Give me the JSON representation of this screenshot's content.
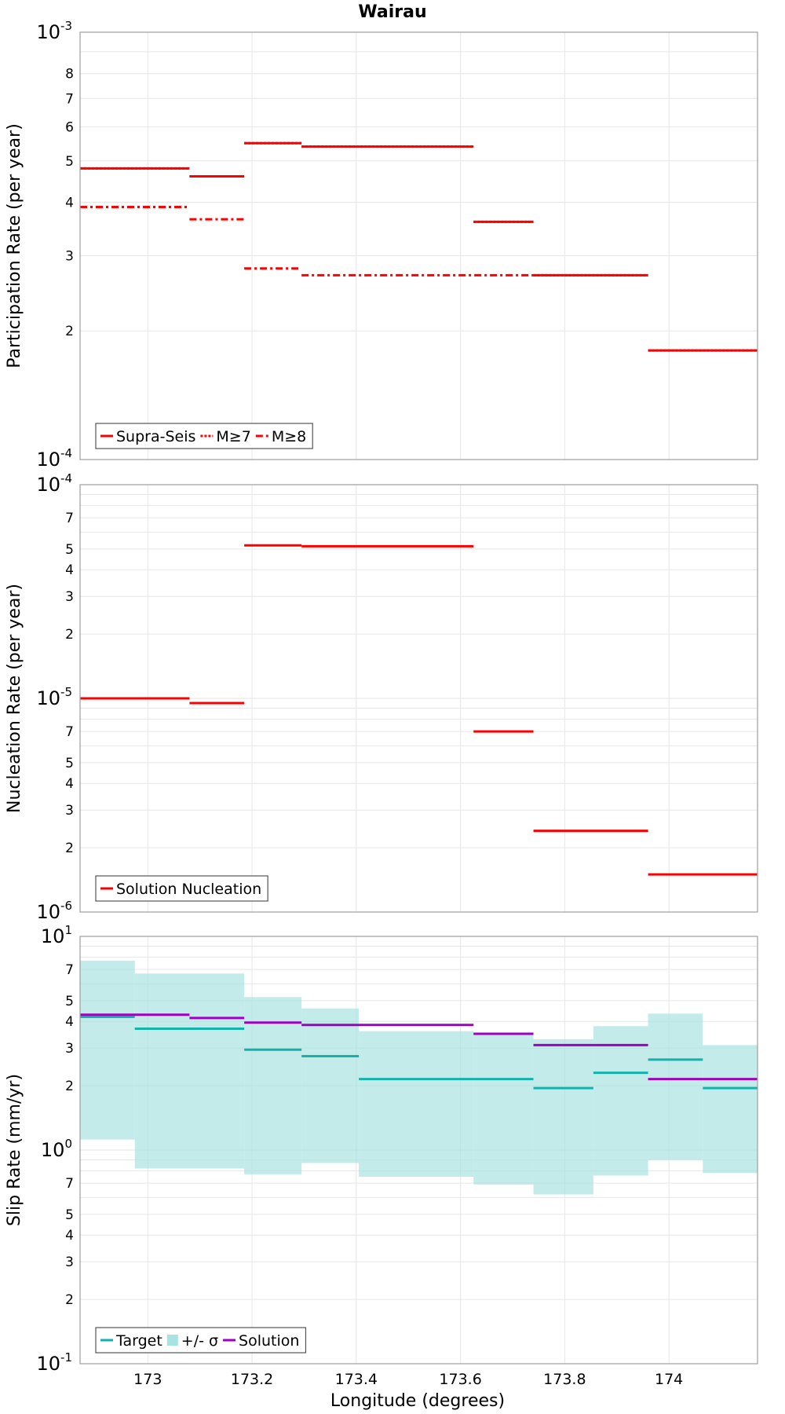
{
  "title": "Wairau",
  "xlabel": "Longitude (degrees)",
  "x_ticks": [
    173,
    173.2,
    173.4,
    173.6,
    173.8,
    174
  ],
  "x_tick_labels": [
    "173",
    "173.2",
    "173.4",
    "173.6",
    "173.8",
    "174"
  ],
  "xlim": [
    172.87,
    174.17
  ],
  "colors": {
    "red": "#ff0000",
    "teal": "#14b2ad",
    "band": "#a8e3e1",
    "purple": "#a000c0",
    "grid": "#e6e6e6",
    "frame": "#9e9e9e"
  },
  "chart_data": [
    {
      "type": "line",
      "ylabel": "Participation Rate (per year)",
      "yscale": "log",
      "ylim": [
        0.0001,
        0.001
      ],
      "y_tick_labels": [
        {
          "value": 0.001,
          "base": "10",
          "exp": "-3",
          "major": true
        },
        {
          "value": 0.0008,
          "label": "8"
        },
        {
          "value": 0.0007,
          "label": "7"
        },
        {
          "value": 0.0006,
          "label": "6"
        },
        {
          "value": 0.0005,
          "label": "5"
        },
        {
          "value": 0.0004,
          "label": "4"
        },
        {
          "value": 0.0003,
          "label": "3"
        },
        {
          "value": 0.0002,
          "label": "2"
        },
        {
          "value": 0.0001,
          "base": "10",
          "exp": "-4",
          "major": true
        }
      ],
      "legend": {
        "position": "bottom-left",
        "entries": [
          {
            "label": "Supra-Seis",
            "style": "solid",
            "color": "#ff0000"
          },
          {
            "label": "M≥7",
            "style": "dotted",
            "color": "#ff0000"
          },
          {
            "label": "M≥8",
            "style": "dashdot",
            "color": "#ff0000"
          }
        ]
      },
      "series": [
        {
          "name": "Supra-Seis",
          "style": "solid",
          "color": "#ff0000",
          "segments": [
            [
              172.87,
              173.08,
              0.00048
            ],
            [
              173.08,
              173.185,
              0.00046
            ],
            [
              173.185,
              173.295,
              0.00055
            ],
            [
              173.295,
              173.625,
              0.00054
            ],
            [
              173.625,
              173.74,
              0.00036
            ],
            [
              173.74,
              173.96,
              0.00027
            ],
            [
              173.96,
              174.17,
              0.00018
            ]
          ]
        },
        {
          "name": "M≥7",
          "style": "dotted",
          "color": "#ff0000",
          "segments": [
            [
              172.87,
              173.08,
              0.00048
            ],
            [
              173.08,
              173.185,
              0.00046
            ],
            [
              173.185,
              173.295,
              0.00055
            ],
            [
              173.295,
              173.625,
              0.00054
            ],
            [
              173.625,
              173.74,
              0.00036
            ],
            [
              173.74,
              173.96,
              0.00027
            ],
            [
              173.96,
              174.17,
              0.00018
            ]
          ]
        },
        {
          "name": "M≥8",
          "style": "dashdot",
          "color": "#ff0000",
          "segments": [
            [
              172.87,
              173.08,
              0.00039
            ],
            [
              173.08,
              173.185,
              0.000365
            ],
            [
              173.185,
              173.295,
              0.00028
            ],
            [
              173.295,
              173.74,
              0.00027
            ]
          ]
        }
      ]
    },
    {
      "type": "line",
      "ylabel": "Nucleation Rate (per year)",
      "yscale": "log",
      "ylim": [
        1e-06,
        0.0001
      ],
      "y_tick_labels": [
        {
          "value": 0.0001,
          "base": "10",
          "exp": "-4",
          "major": true
        },
        {
          "value": 7e-05,
          "label": "7"
        },
        {
          "value": 5e-05,
          "label": "5"
        },
        {
          "value": 4e-05,
          "label": "4"
        },
        {
          "value": 3e-05,
          "label": "3"
        },
        {
          "value": 2e-05,
          "label": "2"
        },
        {
          "value": 1e-05,
          "base": "10",
          "exp": "-5",
          "major": true
        },
        {
          "value": 7e-06,
          "label": "7"
        },
        {
          "value": 5e-06,
          "label": "5"
        },
        {
          "value": 4e-06,
          "label": "4"
        },
        {
          "value": 3e-06,
          "label": "3"
        },
        {
          "value": 2e-06,
          "label": "2"
        },
        {
          "value": 1e-06,
          "base": "10",
          "exp": "-6",
          "major": true
        }
      ],
      "legend": {
        "position": "bottom-left",
        "entries": [
          {
            "label": "Solution Nucleation",
            "style": "solid",
            "color": "#ff0000"
          }
        ]
      },
      "series": [
        {
          "name": "Solution Nucleation",
          "style": "solid",
          "color": "#ff0000",
          "segments": [
            [
              172.87,
              173.08,
              1e-05
            ],
            [
              173.08,
              173.185,
              9.5e-06
            ],
            [
              173.185,
              173.295,
              5.2e-05
            ],
            [
              173.295,
              173.625,
              5.15e-05
            ],
            [
              173.625,
              173.74,
              7e-06
            ],
            [
              173.74,
              173.96,
              2.4e-06
            ],
            [
              173.96,
              174.17,
              1.5e-06
            ]
          ]
        }
      ]
    },
    {
      "type": "area",
      "ylabel": "Slip Rate (mm/yr)",
      "yscale": "log",
      "ylim": [
        0.1,
        10
      ],
      "y_tick_labels": [
        {
          "value": 10,
          "base": "10",
          "exp": "1",
          "major": true
        },
        {
          "value": 7,
          "label": "7"
        },
        {
          "value": 5,
          "label": "5"
        },
        {
          "value": 4,
          "label": "4"
        },
        {
          "value": 3,
          "label": "3"
        },
        {
          "value": 2,
          "label": "2"
        },
        {
          "value": 1,
          "base": "10",
          "exp": "0",
          "major": true
        },
        {
          "value": 0.7,
          "label": "7"
        },
        {
          "value": 0.5,
          "label": "5"
        },
        {
          "value": 0.4,
          "label": "4"
        },
        {
          "value": 0.3,
          "label": "3"
        },
        {
          "value": 0.2,
          "label": "2"
        },
        {
          "value": 0.1,
          "base": "10",
          "exp": "-1",
          "major": true
        }
      ],
      "legend": {
        "position": "bottom-left",
        "entries": [
          {
            "label": "Target",
            "style": "solid",
            "color": "#14b2ad"
          },
          {
            "label": "+/- σ",
            "style": "box",
            "color": "#a8e3e1"
          },
          {
            "label": "Solution",
            "style": "solid",
            "color": "#a000c0"
          }
        ]
      },
      "band": [
        [
          172.87,
          172.975,
          1.12,
          7.7
        ],
        [
          172.975,
          173.185,
          0.82,
          6.7
        ],
        [
          173.185,
          173.295,
          0.77,
          5.2
        ],
        [
          173.295,
          173.405,
          0.87,
          4.6
        ],
        [
          173.405,
          173.625,
          0.75,
          3.6
        ],
        [
          173.625,
          173.74,
          0.69,
          3.55
        ],
        [
          173.74,
          173.855,
          0.62,
          3.3
        ],
        [
          173.855,
          173.96,
          0.76,
          3.8
        ],
        [
          173.96,
          174.065,
          0.9,
          4.35
        ],
        [
          174.065,
          174.17,
          0.78,
          3.1
        ]
      ],
      "series": [
        {
          "name": "Target",
          "style": "solid",
          "color": "#14b2ad",
          "segments": [
            [
              172.87,
              172.975,
              4.2
            ],
            [
              172.975,
              173.185,
              3.7
            ],
            [
              173.185,
              173.295,
              2.95
            ],
            [
              173.295,
              173.405,
              2.75
            ],
            [
              173.405,
              173.74,
              2.15
            ],
            [
              173.74,
              173.855,
              1.95
            ],
            [
              173.855,
              173.96,
              2.3
            ],
            [
              173.96,
              174.065,
              2.65
            ],
            [
              174.065,
              174.17,
              1.95
            ]
          ]
        },
        {
          "name": "Solution",
          "style": "solid",
          "color": "#a000c0",
          "segments": [
            [
              172.87,
              173.08,
              4.3
            ],
            [
              173.08,
              173.185,
              4.15
            ],
            [
              173.185,
              173.295,
              3.95
            ],
            [
              173.295,
              173.625,
              3.85
            ],
            [
              173.625,
              173.74,
              3.5
            ],
            [
              173.74,
              173.96,
              3.1
            ],
            [
              173.96,
              174.17,
              2.15
            ]
          ]
        }
      ]
    }
  ]
}
